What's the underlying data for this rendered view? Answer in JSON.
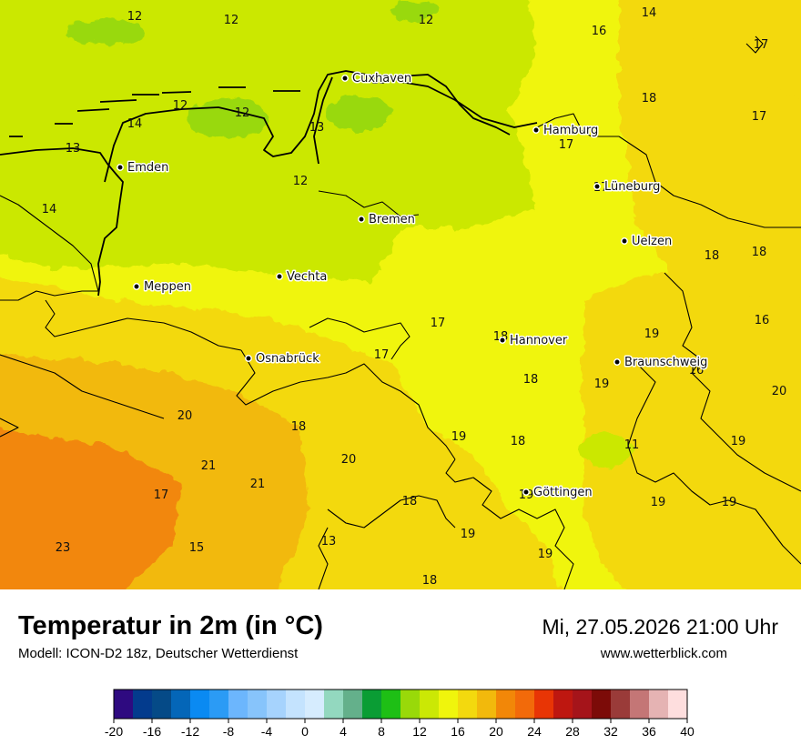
{
  "header": {
    "title": "Temperatur in 2m (in °C)",
    "model": "Modell: ICON-D2 18z, Deutscher Wetterdienst",
    "datetime": "Mi, 27.05.2026 21:00 Uhr",
    "website": "www.wetterblick.com"
  },
  "cities": [
    {
      "name": "Cuxhaven"
    },
    {
      "name": "Hamburg"
    },
    {
      "name": "Emden"
    },
    {
      "name": "Lüneburg"
    },
    {
      "name": "Bremen"
    },
    {
      "name": "Uelzen"
    },
    {
      "name": "Vechta"
    },
    {
      "name": "Meppen"
    },
    {
      "name": "Hannover"
    },
    {
      "name": "Osnabrück"
    },
    {
      "name": "Braunschweig"
    },
    {
      "name": "Göttingen"
    }
  ],
  "temperature_labels": [
    "12",
    "12",
    "12",
    "14",
    "16",
    "17",
    "13",
    "12",
    "14",
    "12",
    "13",
    "18",
    "17",
    "13",
    "17",
    "12",
    "17",
    "14",
    "18",
    "18",
    "17",
    "16",
    "18",
    "19",
    "17",
    "16",
    "18",
    "20",
    "19",
    "20",
    "18",
    "19",
    "18",
    "11",
    "19",
    "21",
    "20",
    "21",
    "17",
    "18",
    "19",
    "19",
    "19",
    "23",
    "15",
    "13",
    "19",
    "19",
    "18"
  ],
  "colorbar": {
    "colors": [
      "#2e0a80",
      "#033b8d",
      "#054a87",
      "#0466b8",
      "#0a8af2",
      "#2b9bf5",
      "#6cb6fd",
      "#87c4fb",
      "#a6d3fd",
      "#c4e3fe",
      "#d6ecfe",
      "#93d8bf",
      "#64b08b",
      "#0a9d34",
      "#1ebf15",
      "#99d909",
      "#cbe805",
      "#f0f50c",
      "#f3d90e",
      "#f2b90c",
      "#f28708",
      "#f26a0a",
      "#e83505",
      "#be1710",
      "#a5141a",
      "#7c0b08",
      "#9a3b39",
      "#c47676",
      "#e5b3b3",
      "#fedede"
    ],
    "ticks": [
      "-20",
      "-16",
      "-12",
      "-8",
      "-4",
      "0",
      "4",
      "8",
      "12",
      "16",
      "20",
      "24",
      "28",
      "32",
      "36",
      "40"
    ]
  }
}
